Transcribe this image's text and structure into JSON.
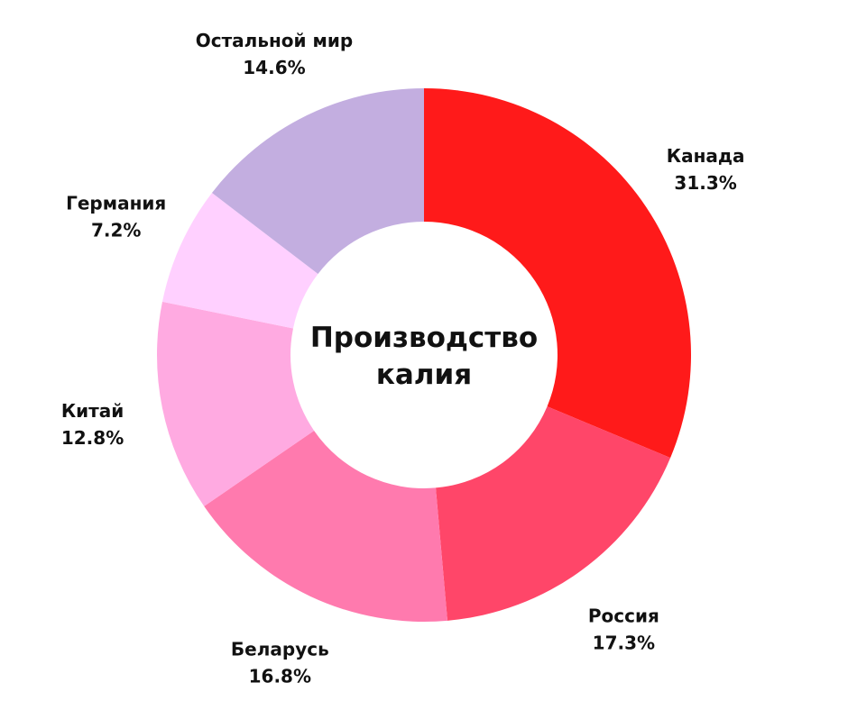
{
  "chart_data": {
    "type": "pie",
    "title_lines": [
      "Производство",
      "калия"
    ],
    "categories": [
      "Канада",
      "Россия",
      "Беларусь",
      "Китай",
      "Германия",
      "Остальной мир"
    ],
    "values": [
      31.3,
      17.3,
      16.8,
      12.8,
      7.2,
      14.6
    ],
    "value_labels": [
      "31.3%",
      "17.3%",
      "16.8%",
      "12.8%",
      "7.2%",
      "14.6%"
    ],
    "colors": [
      "#ff1a1a",
      "#ff4669",
      "#ff7aae",
      "#ffaae1",
      "#ffd0ff",
      "#c3aee0"
    ],
    "donut": true,
    "start": "top",
    "direction": "clockwise"
  }
}
